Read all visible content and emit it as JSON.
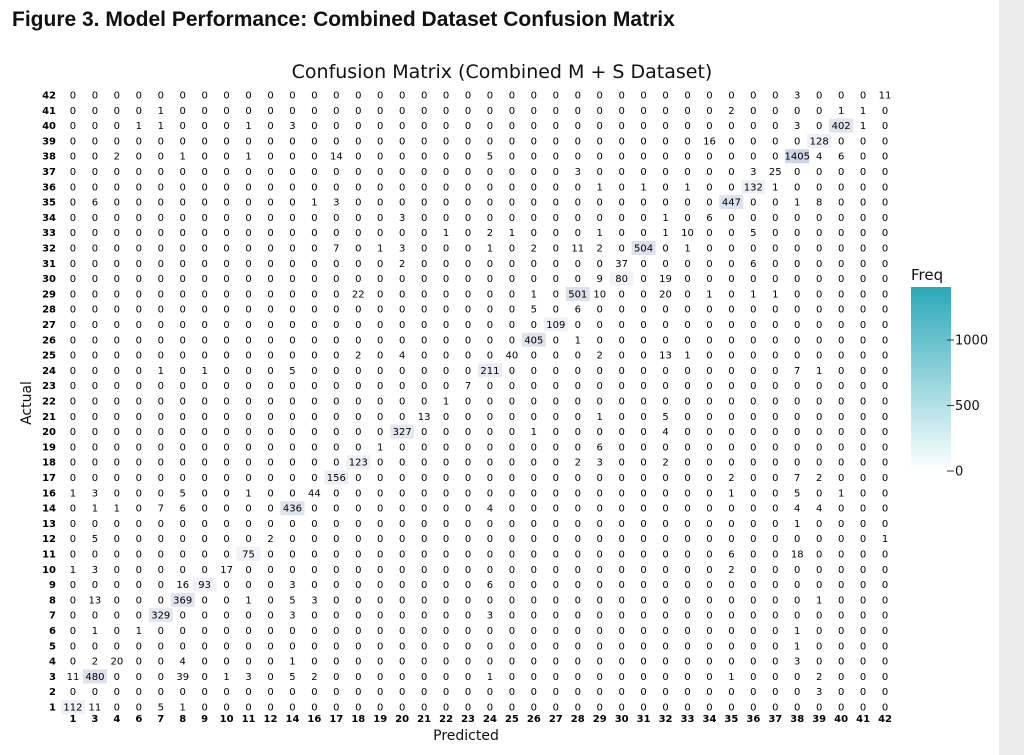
{
  "figure_title": "Figure 3. Model Performance: Combined Dataset Confusion Matrix",
  "chart_data": {
    "type": "heatmap",
    "title": "Confusion Matrix (Combined M + S Dataset)",
    "xlabel": "Predicted",
    "ylabel": "Actual",
    "colorbar": {
      "label": "Freq",
      "ticks": [
        0,
        500,
        1000
      ],
      "tick_labels": [
        "0",
        "500",
        "1000"
      ],
      "range": [
        0,
        1405
      ],
      "color_low": "#ffffff",
      "color_high": "#2aa9b8"
    },
    "x_labels": [
      "1",
      "3",
      "4",
      "6",
      "7",
      "8",
      "9",
      "10",
      "11",
      "12",
      "14",
      "16",
      "17",
      "18",
      "19",
      "20",
      "21",
      "22",
      "23",
      "24",
      "25",
      "26",
      "27",
      "28",
      "29",
      "30",
      "31",
      "32",
      "33",
      "34",
      "35",
      "36",
      "37",
      "38",
      "39",
      "40",
      "41",
      "42"
    ],
    "y_labels_top_to_bottom": [
      "42",
      "41",
      "40",
      "39",
      "38",
      "37",
      "36",
      "35",
      "34",
      "33",
      "32",
      "31",
      "30",
      "29",
      "28",
      "27",
      "26",
      "25",
      "24",
      "23",
      "22",
      "21",
      "20",
      "19",
      "18",
      "17",
      "16",
      "14",
      "13",
      "12",
      "11",
      "10",
      "9",
      "8",
      "7",
      "6",
      "5",
      "4",
      "3",
      "2",
      "1"
    ],
    "matrix": [
      [
        0,
        0,
        0,
        0,
        0,
        0,
        0,
        0,
        0,
        0,
        0,
        0,
        0,
        0,
        0,
        0,
        0,
        0,
        0,
        0,
        0,
        0,
        0,
        0,
        0,
        0,
        0,
        0,
        0,
        0,
        0,
        0,
        0,
        3,
        0,
        0,
        0,
        11
      ],
      [
        0,
        0,
        0,
        0,
        1,
        0,
        0,
        0,
        0,
        0,
        0,
        0,
        0,
        0,
        0,
        0,
        0,
        0,
        0,
        0,
        0,
        0,
        0,
        0,
        0,
        0,
        0,
        0,
        0,
        0,
        2,
        0,
        0,
        0,
        0,
        1,
        1,
        0
      ],
      [
        0,
        0,
        0,
        1,
        1,
        0,
        0,
        0,
        1,
        0,
        3,
        0,
        0,
        0,
        0,
        0,
        0,
        0,
        0,
        0,
        0,
        0,
        0,
        0,
        0,
        0,
        0,
        0,
        0,
        0,
        0,
        0,
        0,
        3,
        0,
        402,
        1,
        0
      ],
      [
        0,
        0,
        0,
        0,
        0,
        0,
        0,
        0,
        0,
        0,
        0,
        0,
        0,
        0,
        0,
        0,
        0,
        0,
        0,
        0,
        0,
        0,
        0,
        0,
        0,
        0,
        0,
        0,
        0,
        16,
        0,
        0,
        0,
        0,
        128,
        0,
        0,
        0
      ],
      [
        0,
        0,
        2,
        0,
        0,
        1,
        0,
        0,
        1,
        0,
        0,
        0,
        14,
        0,
        0,
        0,
        0,
        0,
        0,
        5,
        0,
        0,
        0,
        0,
        0,
        0,
        0,
        0,
        0,
        0,
        0,
        0,
        0,
        1405,
        4,
        6,
        0,
        0
      ],
      [
        0,
        0,
        0,
        0,
        0,
        0,
        0,
        0,
        0,
        0,
        0,
        0,
        0,
        0,
        0,
        0,
        0,
        0,
        0,
        0,
        0,
        0,
        0,
        3,
        0,
        0,
        0,
        0,
        0,
        0,
        0,
        3,
        25,
        0,
        0,
        0,
        0,
        0
      ],
      [
        0,
        0,
        0,
        0,
        0,
        0,
        0,
        0,
        0,
        0,
        0,
        0,
        0,
        0,
        0,
        0,
        0,
        0,
        0,
        0,
        0,
        0,
        0,
        0,
        1,
        0,
        1,
        0,
        1,
        0,
        0,
        132,
        1,
        0,
        0,
        0,
        0,
        0
      ],
      [
        0,
        6,
        0,
        0,
        0,
        0,
        0,
        0,
        0,
        0,
        0,
        1,
        3,
        0,
        0,
        0,
        0,
        0,
        0,
        0,
        0,
        0,
        0,
        0,
        0,
        0,
        0,
        0,
        0,
        0,
        447,
        0,
        0,
        1,
        8,
        0,
        0,
        0
      ],
      [
        0,
        0,
        0,
        0,
        0,
        0,
        0,
        0,
        0,
        0,
        0,
        0,
        0,
        0,
        0,
        3,
        0,
        0,
        0,
        0,
        0,
        0,
        0,
        0,
        0,
        0,
        0,
        1,
        0,
        6,
        0,
        0,
        0,
        0,
        0,
        0,
        0,
        0
      ],
      [
        0,
        0,
        0,
        0,
        0,
        0,
        0,
        0,
        0,
        0,
        0,
        0,
        0,
        0,
        0,
        0,
        0,
        1,
        0,
        2,
        1,
        0,
        0,
        0,
        1,
        0,
        0,
        1,
        10,
        0,
        0,
        5,
        0,
        0,
        0,
        0,
        0,
        0
      ],
      [
        0,
        0,
        0,
        0,
        0,
        0,
        0,
        0,
        0,
        0,
        0,
        0,
        7,
        0,
        1,
        3,
        0,
        0,
        0,
        1,
        0,
        2,
        0,
        11,
        2,
        0,
        504,
        0,
        1,
        0,
        0,
        0,
        0,
        0,
        0,
        0,
        0,
        0
      ],
      [
        0,
        0,
        0,
        0,
        0,
        0,
        0,
        0,
        0,
        0,
        0,
        0,
        0,
        0,
        0,
        2,
        0,
        0,
        0,
        0,
        0,
        0,
        0,
        0,
        0,
        37,
        0,
        0,
        0,
        0,
        0,
        6,
        0,
        0,
        0,
        0,
        0,
        0
      ],
      [
        0,
        0,
        0,
        0,
        0,
        0,
        0,
        0,
        0,
        0,
        0,
        0,
        0,
        0,
        0,
        0,
        0,
        0,
        0,
        0,
        0,
        0,
        0,
        0,
        9,
        80,
        0,
        19,
        0,
        0,
        0,
        0,
        0,
        0,
        0,
        0,
        0,
        0
      ],
      [
        0,
        0,
        0,
        0,
        0,
        0,
        0,
        0,
        0,
        0,
        0,
        0,
        0,
        22,
        0,
        0,
        0,
        0,
        0,
        0,
        0,
        1,
        0,
        501,
        10,
        0,
        0,
        20,
        0,
        1,
        0,
        1,
        1,
        0,
        0,
        0,
        0,
        0
      ],
      [
        0,
        0,
        0,
        0,
        0,
        0,
        0,
        0,
        0,
        0,
        0,
        0,
        0,
        0,
        0,
        0,
        0,
        0,
        0,
        0,
        0,
        5,
        0,
        6,
        0,
        0,
        0,
        0,
        0,
        0,
        0,
        0,
        0,
        0,
        0,
        0,
        0,
        0
      ],
      [
        0,
        0,
        0,
        0,
        0,
        0,
        0,
        0,
        0,
        0,
        0,
        0,
        0,
        0,
        0,
        0,
        0,
        0,
        0,
        0,
        0,
        0,
        109,
        0,
        0,
        0,
        0,
        0,
        0,
        0,
        0,
        0,
        0,
        0,
        0,
        0,
        0,
        0
      ],
      [
        0,
        0,
        0,
        0,
        0,
        0,
        0,
        0,
        0,
        0,
        0,
        0,
        0,
        0,
        0,
        0,
        0,
        0,
        0,
        0,
        0,
        405,
        0,
        1,
        0,
        0,
        0,
        0,
        0,
        0,
        0,
        0,
        0,
        0,
        0,
        0,
        0,
        0
      ],
      [
        0,
        0,
        0,
        0,
        0,
        0,
        0,
        0,
        0,
        0,
        0,
        0,
        0,
        2,
        0,
        4,
        0,
        0,
        0,
        0,
        40,
        0,
        0,
        0,
        2,
        0,
        0,
        13,
        1,
        0,
        0,
        0,
        0,
        0,
        0,
        0,
        0,
        0
      ],
      [
        0,
        0,
        0,
        0,
        1,
        0,
        1,
        0,
        0,
        0,
        5,
        0,
        0,
        0,
        0,
        0,
        0,
        0,
        0,
        211,
        0,
        0,
        0,
        0,
        0,
        0,
        0,
        0,
        0,
        0,
        0,
        0,
        0,
        7,
        1,
        0,
        0,
        0
      ],
      [
        0,
        0,
        0,
        0,
        0,
        0,
        0,
        0,
        0,
        0,
        0,
        0,
        0,
        0,
        0,
        0,
        0,
        0,
        7,
        0,
        0,
        0,
        0,
        0,
        0,
        0,
        0,
        0,
        0,
        0,
        0,
        0,
        0,
        0,
        0,
        0,
        0,
        0
      ],
      [
        0,
        0,
        0,
        0,
        0,
        0,
        0,
        0,
        0,
        0,
        0,
        0,
        0,
        0,
        0,
        0,
        0,
        1,
        0,
        0,
        0,
        0,
        0,
        0,
        0,
        0,
        0,
        0,
        0,
        0,
        0,
        0,
        0,
        0,
        0,
        0,
        0,
        0
      ],
      [
        0,
        0,
        0,
        0,
        0,
        0,
        0,
        0,
        0,
        0,
        0,
        0,
        0,
        0,
        0,
        0,
        13,
        0,
        0,
        0,
        0,
        0,
        0,
        0,
        1,
        0,
        0,
        5,
        0,
        0,
        0,
        0,
        0,
        0,
        0,
        0,
        0,
        0
      ],
      [
        0,
        0,
        0,
        0,
        0,
        0,
        0,
        0,
        0,
        0,
        0,
        0,
        0,
        0,
        0,
        327,
        0,
        0,
        0,
        0,
        0,
        1,
        0,
        0,
        0,
        0,
        0,
        4,
        0,
        0,
        0,
        0,
        0,
        0,
        0,
        0,
        0,
        0
      ],
      [
        0,
        0,
        0,
        0,
        0,
        0,
        0,
        0,
        0,
        0,
        0,
        0,
        0,
        0,
        1,
        0,
        0,
        0,
        0,
        0,
        0,
        0,
        0,
        0,
        6,
        0,
        0,
        0,
        0,
        0,
        0,
        0,
        0,
        0,
        0,
        0,
        0,
        0
      ],
      [
        0,
        0,
        0,
        0,
        0,
        0,
        0,
        0,
        0,
        0,
        0,
        0,
        0,
        123,
        0,
        0,
        0,
        0,
        0,
        0,
        0,
        0,
        0,
        2,
        3,
        0,
        0,
        2,
        0,
        0,
        0,
        0,
        0,
        0,
        0,
        0,
        0,
        0
      ],
      [
        0,
        0,
        0,
        0,
        0,
        0,
        0,
        0,
        0,
        0,
        0,
        0,
        156,
        0,
        0,
        0,
        0,
        0,
        0,
        0,
        0,
        0,
        0,
        0,
        0,
        0,
        0,
        0,
        0,
        0,
        2,
        0,
        0,
        7,
        2,
        0,
        0,
        0
      ],
      [
        1,
        3,
        0,
        0,
        0,
        5,
        0,
        0,
        1,
        0,
        0,
        44,
        0,
        0,
        0,
        0,
        0,
        0,
        0,
        0,
        0,
        0,
        0,
        0,
        0,
        0,
        0,
        0,
        0,
        0,
        1,
        0,
        0,
        5,
        0,
        1,
        0,
        0
      ],
      [
        0,
        1,
        1,
        0,
        7,
        6,
        0,
        0,
        0,
        0,
        436,
        0,
        0,
        0,
        0,
        0,
        0,
        0,
        0,
        4,
        0,
        0,
        0,
        0,
        0,
        0,
        0,
        0,
        0,
        0,
        0,
        0,
        0,
        4,
        4,
        0,
        0,
        0
      ],
      [
        0,
        0,
        0,
        0,
        0,
        0,
        0,
        0,
        0,
        0,
        0,
        0,
        0,
        0,
        0,
        0,
        0,
        0,
        0,
        0,
        0,
        0,
        0,
        0,
        0,
        0,
        0,
        0,
        0,
        0,
        0,
        0,
        0,
        1,
        0,
        0,
        0,
        0
      ],
      [
        0,
        5,
        0,
        0,
        0,
        0,
        0,
        0,
        0,
        2,
        0,
        0,
        0,
        0,
        0,
        0,
        0,
        0,
        0,
        0,
        0,
        0,
        0,
        0,
        0,
        0,
        0,
        0,
        0,
        0,
        0,
        0,
        0,
        0,
        0,
        0,
        0,
        1
      ],
      [
        0,
        0,
        0,
        0,
        0,
        0,
        0,
        0,
        75,
        0,
        0,
        0,
        0,
        0,
        0,
        0,
        0,
        0,
        0,
        0,
        0,
        0,
        0,
        0,
        0,
        0,
        0,
        0,
        0,
        0,
        6,
        0,
        0,
        18,
        0,
        0,
        0,
        0
      ],
      [
        1,
        3,
        0,
        0,
        0,
        0,
        0,
        17,
        0,
        0,
        0,
        0,
        0,
        0,
        0,
        0,
        0,
        0,
        0,
        0,
        0,
        0,
        0,
        0,
        0,
        0,
        0,
        0,
        0,
        0,
        2,
        0,
        0,
        0,
        0,
        0,
        0,
        0
      ],
      [
        0,
        0,
        0,
        0,
        0,
        16,
        93,
        0,
        0,
        0,
        3,
        0,
        0,
        0,
        0,
        0,
        0,
        0,
        0,
        6,
        0,
        0,
        0,
        0,
        0,
        0,
        0,
        0,
        0,
        0,
        0,
        0,
        0,
        0,
        0,
        0,
        0,
        0
      ],
      [
        0,
        13,
        0,
        0,
        0,
        369,
        0,
        0,
        1,
        0,
        5,
        3,
        0,
        0,
        0,
        0,
        0,
        0,
        0,
        0,
        0,
        0,
        0,
        0,
        0,
        0,
        0,
        0,
        0,
        0,
        0,
        0,
        0,
        0,
        1,
        0,
        0,
        0
      ],
      [
        0,
        0,
        0,
        0,
        329,
        0,
        0,
        0,
        0,
        0,
        3,
        0,
        0,
        0,
        0,
        0,
        0,
        0,
        0,
        3,
        0,
        0,
        0,
        0,
        0,
        0,
        0,
        0,
        0,
        0,
        0,
        0,
        0,
        0,
        0,
        0,
        0,
        0
      ],
      [
        0,
        1,
        0,
        1,
        0,
        0,
        0,
        0,
        0,
        0,
        0,
        0,
        0,
        0,
        0,
        0,
        0,
        0,
        0,
        0,
        0,
        0,
        0,
        0,
        0,
        0,
        0,
        0,
        0,
        0,
        0,
        0,
        0,
        1,
        0,
        0,
        0,
        0
      ],
      [
        0,
        0,
        0,
        0,
        0,
        0,
        0,
        0,
        0,
        0,
        0,
        0,
        0,
        0,
        0,
        0,
        0,
        0,
        0,
        0,
        0,
        0,
        0,
        0,
        0,
        0,
        0,
        0,
        0,
        0,
        0,
        0,
        0,
        1,
        0,
        0,
        0,
        0
      ],
      [
        0,
        2,
        20,
        0,
        0,
        4,
        0,
        0,
        0,
        0,
        1,
        0,
        0,
        0,
        0,
        0,
        0,
        0,
        0,
        0,
        0,
        0,
        0,
        0,
        0,
        0,
        0,
        0,
        0,
        0,
        0,
        0,
        0,
        3,
        0,
        0,
        0,
        0
      ],
      [
        11,
        480,
        0,
        0,
        0,
        39,
        0,
        1,
        3,
        0,
        5,
        2,
        0,
        0,
        0,
        0,
        0,
        0,
        0,
        1,
        0,
        0,
        0,
        0,
        0,
        0,
        0,
        0,
        0,
        0,
        1,
        0,
        0,
        0,
        2,
        0,
        0,
        0
      ],
      [
        0,
        0,
        0,
        0,
        0,
        0,
        0,
        0,
        0,
        0,
        0,
        0,
        0,
        0,
        0,
        0,
        0,
        0,
        0,
        0,
        0,
        0,
        0,
        0,
        0,
        0,
        0,
        0,
        0,
        0,
        0,
        0,
        0,
        0,
        3,
        0,
        0,
        0
      ],
      [
        112,
        11,
        0,
        0,
        5,
        1,
        0,
        0,
        0,
        0,
        0,
        0,
        0,
        0,
        0,
        0,
        0,
        0,
        0,
        0,
        0,
        0,
        0,
        0,
        0,
        0,
        0,
        0,
        0,
        0,
        0,
        0,
        0,
        0,
        0,
        0,
        0,
        0
      ]
    ]
  }
}
